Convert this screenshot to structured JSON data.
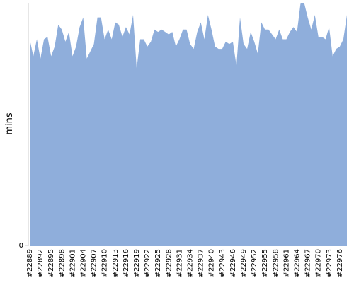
{
  "chart_data": {
    "type": "area",
    "y_label": "mins",
    "color": "#8faedb",
    "categories": [
      "#22889",
      null,
      null,
      "#22892",
      null,
      null,
      "#22895",
      null,
      null,
      "#22898",
      null,
      null,
      "#22901",
      null,
      null,
      "#22904",
      null,
      null,
      "#22907",
      null,
      null,
      "#22910",
      null,
      null,
      "#22913",
      null,
      null,
      "#22916",
      null,
      null,
      "#22919",
      null,
      null,
      "#22922",
      null,
      null,
      "#22925",
      null,
      null,
      "#22928",
      null,
      null,
      "#22931",
      null,
      null,
      "#22934",
      null,
      null,
      "#22937",
      null,
      null,
      "#22940",
      null,
      null,
      "#22943",
      null,
      null,
      "#22946",
      null,
      null,
      "#22949",
      null,
      null,
      "#22952",
      null,
      null,
      "#22955",
      null,
      null,
      "#22958",
      null,
      null,
      "#22961",
      null,
      null,
      "#22964",
      null,
      null,
      "#22967",
      null,
      null,
      "#22970",
      null,
      null,
      "#22973",
      null,
      null,
      "#22976",
      null,
      null
    ],
    "values": [
      85,
      78,
      85,
      77,
      85,
      86,
      78,
      82,
      91,
      89,
      84,
      88,
      78,
      82,
      90,
      94,
      77,
      80,
      83,
      94,
      94,
      85,
      89,
      85,
      92,
      91,
      86,
      90,
      87,
      95,
      73,
      85,
      85,
      82,
      84,
      89,
      88,
      89,
      88,
      87,
      88,
      82,
      85,
      89,
      89,
      83,
      81,
      88,
      92,
      85,
      95,
      89,
      82,
      81,
      81,
      84,
      83,
      84,
      74,
      94,
      83,
      81,
      88,
      84,
      79,
      92,
      89,
      89,
      87,
      85,
      89,
      85,
      85,
      88,
      90,
      88,
      100,
      100,
      94,
      89,
      95,
      86,
      86,
      85,
      90,
      78,
      81,
      82,
      85,
      95
    ],
    "ylim": [
      0,
      100
    ],
    "yticks": [
      0
    ]
  }
}
